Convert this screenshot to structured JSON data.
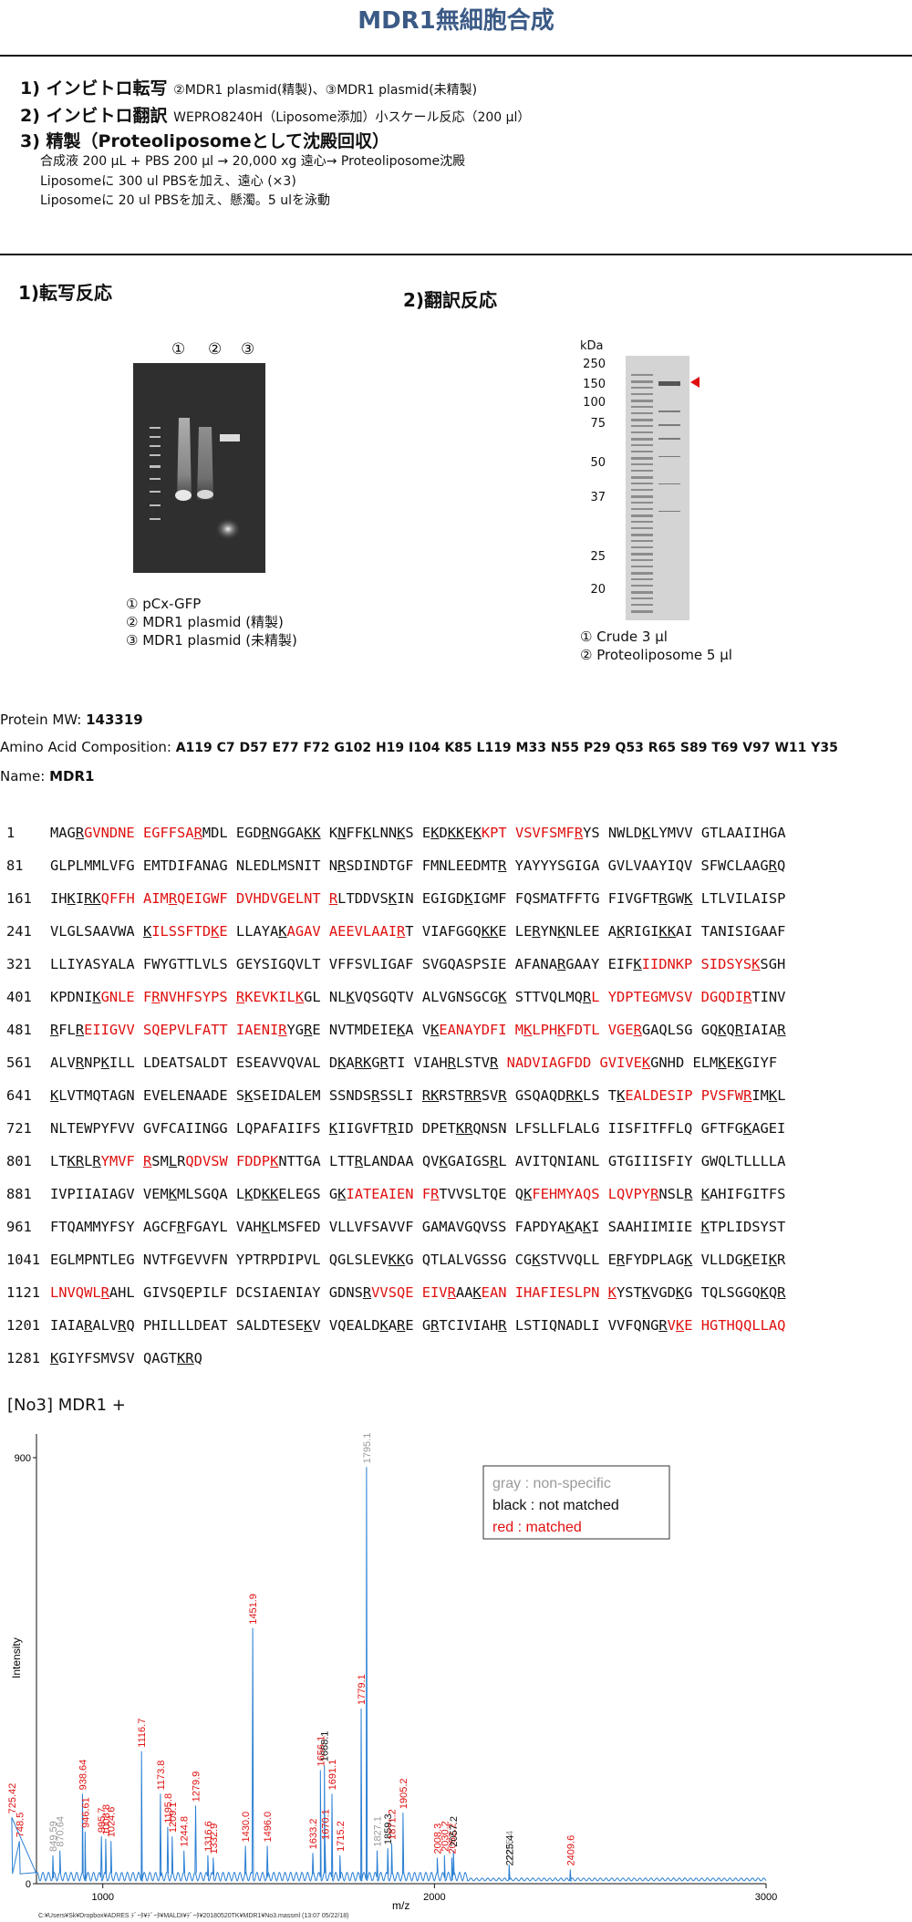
{
  "title": "MDR1無細胞合成",
  "steps": [
    {
      "heading": "1) インビトロ転写",
      "detail": "②MDR1 plasmid(精製)、③MDR1 plasmid(未精製)"
    },
    {
      "heading": "2) インビトロ翻訳",
      "detail": "WEPRO8240H（Liposome添加）小スケール反応（200 µl）"
    },
    {
      "heading": "3) 精製（Proteoliposomeとして沈殿回収）",
      "detail": ""
    }
  ],
  "notes": [
    "合成液 200 µL + PBS 200 µl → 20,000 xg 遠心→ Proteoliposome沈殿",
    "Liposomeに 300 ul PBSを加え、遠心 (×3)",
    "Liposomeに 20 ul PBSを加え、懸濁。5 ulを泳動"
  ],
  "section1": {
    "title": "1)転写反応",
    "lanes": [
      "①",
      "②",
      "③"
    ],
    "legend": [
      "① pCx-GFP",
      "② MDR1 plasmid (精製)",
      "③ MDR1 plasmid (未精製)"
    ]
  },
  "section2": {
    "title": "2)翻訳反応",
    "unit": "kDa",
    "markers": [
      "250",
      "150",
      "100",
      "75",
      "50",
      "37",
      "25",
      "20"
    ],
    "legend": [
      "① Crude 3 µl",
      "② Proteoliposome 5 µl"
    ]
  },
  "protein": {
    "mw_label": "Protein MW:",
    "mw": "143319",
    "comp_label": "Amino Acid Composition:",
    "comp": "A119 C7 D57 E77 F72 G102 H19 I104 K85 L119 M33 N55 P29 Q53 R65 S89 T69 V97 W11 Y35",
    "name_label": "Name:",
    "name": "MDR1"
  },
  "sequence": [
    {
      "n": "1",
      "s": "MAG_R_[GVNDNE EGFFSA_R_]MDL EGD_R_NGGA_K__K_ K_N_FF_K_LNN_K_S E_K_D_K__K_E_K_[KPT VSVFSMF_R_]YS NWLD_K_LYMVV GTLAAIIHGA"
    },
    {
      "n": "81",
      "s": "GLPLMMLVFG EMTDIFANAG NLEDLMSNIT N_R_SDINDTGF FMNLEEDMT_R_ YAYYYSGIGA GVLVAAYIQV SFWCLAAG_R_Q"
    },
    {
      "n": "161",
      "s": "IH_K_I_R__K_[QFFH AIM_R_QEIGWF DVHDVGELNT _R_]LTDDVS_K_IN EGIGD_K_IGMF FQSMATFFTG FIVGFT_R_GW_K_ LTLVILAISP"
    },
    {
      "n": "241",
      "s": "VLGLSAAVWA _K_[ILSSFTD_K_E] LLAYA_K_[AGAV AEEVLAAI_R_]T VIAFGGQ_K__K_E LE_R_YN_K_NLEE A_K_RIGI_K__K_AI TANISIGAAF"
    },
    {
      "n": "321",
      "s": "LLIYASYALA FWYGTTLVLS GEYSIGQVLT VFFSVLIGAF SVGQASPSIE AFANA_R_GAAY EIF_K_[IIDNKP SIDSYS_K_]SGH"
    },
    {
      "n": "401",
      "s": "KPDNI_K_[GNLE F_R_NVHFSYPS _R_KEVKIL_K_]GL NL_K_VQSGQTV ALVGNSGCG_K_ STTVQLMQ_R_[L YDPTEGMVSV DGQDI_R_]TINV"
    },
    {
      "n": "481",
      "s": "_R_FL_R_[EIIGVV SQEPVLFATT IAENI_R_]YG_R_E NVTMDEIE_K_A V_K_[EANAYDFI M_K_LPH_K_FDTL VGE_R_]GAQLSG GQ_K_Q_R_IAIA_R_"
    },
    {
      "n": "561",
      "s": "ALV_R_NP_K_ILL LDEATSALDT ESEAVVQVAL D_K_A_R__K_G_R_TI VIAH_R_LSTV_R_ [NADVIAGFDD GVIVE_K_]GNHD ELM_K_E_K_GIYF"
    },
    {
      "n": "641",
      "s": "_K_LVTMQTAGN EVELENAADE S_K_SEIDALEM SSNDS_R_SSLI _R__K_RST_R__R_SV_R_ GSQAQD_R__K_LS T_K_[EALDESIP PVSFW_R_]IM_K_L"
    },
    {
      "n": "721",
      "s": "NLTEWPYFVV GVFCAIINGG LQPAFAIIFS _K_IIGVFT_R_ID DPET_K__R_QNSN LFSLLFLALG IISFITFFLQ GFTFG_K_AGEI"
    },
    {
      "n": "801",
      "s": "LT_K__R_L_R_[YMVF _R_]SM_L_R[QDVSW FDDP_K_]NTTGA LTT_R_LANDAA QV_K_GAIGS_R_L AVITQNIANL GTGIIISFIY GWQLTLLLLA"
    },
    {
      "n": "881",
      "s": "IVPIIAIAGV VEM_K_MLSGQA L_K_D_K__K_ELEGS G_K_[IATEAIEN F_R_]TVVSLTQE Q_K_[FEHMYAQS LQVPY_R_]NSL_R_ _K_AHIFGITFS"
    },
    {
      "n": "961",
      "s": "FTQAMMYFSY AGCF_R_FGAYL VAH_K_LMSFED VLLVFSAVVF GAMAVGQVSS FAPDYA_K_A_K_I SAAHIIMIIE _K_TPLIDSYST"
    },
    {
      "n": "1041",
      "s": "EGLMPNTLEG NVTFGEVVFN YPTRPDIPVL QGLSLEV_K__K_G QTLALVGSSG CG_K_STVVQLL E_R_FYDPLAG_K_ VLLDG_K_EI_K_R"
    },
    {
      "n": "1121",
      "s": "[LNVQWL_R_]AHL GIVSQEPILF DCSIAENIAY GDNS_R_[VVSQE EIV_R_]AA_K_[EAN IHAFIESLPN _K_]YST_K_VGD_K_G TQLSGGQ_K_Q_R_"
    },
    {
      "n": "1201",
      "s": "IAIA_R_ALV_R_Q PHILLLDEAT SALDTESE_K_V VQEALD_K_A_R_E G_R_TCIVIAH_R_ LSTIQNADLI VVFQNG_R_[V_K_E HGTHQQLLAQ"
    },
    {
      "n": "1281",
      "s": "_K_GIYFSMVSV QAGT_K_]_R_Q"
    }
  ],
  "spectrum": {
    "label": "[No3] MDR1 +",
    "legend": {
      "gray": "gray : non-specific",
      "black": "black : not matched",
      "red": "red : matched"
    },
    "colors": {
      "gray": "#9a9a9a",
      "black": "#111111",
      "red": "#e01010",
      "trace": "#2a7fd4"
    },
    "footer": "C:¥Users¥Sk¥Dropbox¥ADRES ﾃﾞｰﾀ¥ﾃﾞｰﾀ¥MALDI¥ﾃﾞｰﾀ¥20180520TK¥MDR1¥No3.massml (13:07 05/22/18)"
  },
  "chart_data": {
    "type": "line",
    "title": "",
    "xlabel": "m/z",
    "ylabel": "Intensity",
    "xlim": [
      800,
      3000
    ],
    "ylim": [
      0,
      950
    ],
    "xticks": [
      1000,
      2000,
      3000
    ],
    "yticks": [
      0,
      900
    ],
    "peaks": [
      {
        "mz": 725.42,
        "label": "725.42",
        "y": 140,
        "color": "red"
      },
      {
        "mz": 748.5,
        "label": "748.5",
        "y": 90,
        "color": "red"
      },
      {
        "mz": 849.59,
        "label": "849.59",
        "y": 60,
        "color": "gray"
      },
      {
        "mz": 870.64,
        "label": "870.64",
        "y": 70,
        "color": "gray"
      },
      {
        "mz": 938.64,
        "label": "938.64",
        "y": 190,
        "color": "red"
      },
      {
        "mz": 946.61,
        "label": "946.61",
        "y": 110,
        "color": "red"
      },
      {
        "mz": 995.7,
        "label": "995.7",
        "y": 100,
        "color": "red"
      },
      {
        "mz": 1008.8,
        "label": "1008.8",
        "y": 95,
        "color": "red"
      },
      {
        "mz": 1024.6,
        "label": "1024.6",
        "y": 90,
        "color": "red"
      },
      {
        "mz": 1116.7,
        "label": "1116.7",
        "y": 280,
        "color": "red"
      },
      {
        "mz": 1173.8,
        "label": "1173.8",
        "y": 190,
        "color": "red"
      },
      {
        "mz": 1195.8,
        "label": "1195.8",
        "y": 120,
        "color": "red"
      },
      {
        "mz": 1209.1,
        "label": "1209.1",
        "y": 100,
        "color": "red"
      },
      {
        "mz": 1244.8,
        "label": "1244.8",
        "y": 70,
        "color": "red"
      },
      {
        "mz": 1279.9,
        "label": "1279.9",
        "y": 165,
        "color": "red"
      },
      {
        "mz": 1316.6,
        "label": "1316.6",
        "y": 60,
        "color": "red"
      },
      {
        "mz": 1332.9,
        "label": "1332.9",
        "y": 55,
        "color": "red"
      },
      {
        "mz": 1430.0,
        "label": "1430.0",
        "y": 80,
        "color": "red"
      },
      {
        "mz": 1451.9,
        "label": "1451.9",
        "y": 540,
        "color": "red"
      },
      {
        "mz": 1496.0,
        "label": "1496.0",
        "y": 80,
        "color": "red"
      },
      {
        "mz": 1633.2,
        "label": "1633.2",
        "y": 65,
        "color": "red"
      },
      {
        "mz": 1670.1,
        "label": "1670.1",
        "y": 85,
        "color": "red"
      },
      {
        "mz": 1691.1,
        "label": "1691.1",
        "y": 190,
        "color": "red"
      },
      {
        "mz": 1715.2,
        "label": "1715.2",
        "y": 60,
        "color": "red"
      },
      {
        "mz": 1656.1,
        "label": "1656.1",
        "y": 240,
        "color": "red"
      },
      {
        "mz": 1668.1,
        "label": "1668.1",
        "y": 250,
        "color": "black"
      },
      {
        "mz": 1779.1,
        "label": "1779.1",
        "y": 370,
        "color": "red"
      },
      {
        "mz": 1795.1,
        "label": "1795.1",
        "y": 880,
        "color": "gray"
      },
      {
        "mz": 1827.1,
        "label": "1827.1",
        "y": 70,
        "color": "gray"
      },
      {
        "mz": 1859.3,
        "label": "1859.3",
        "y": 75,
        "color": "black"
      },
      {
        "mz": 1871.2,
        "label": "1871.2",
        "y": 85,
        "color": "red"
      },
      {
        "mz": 1905.2,
        "label": "1905.2",
        "y": 150,
        "color": "red"
      },
      {
        "mz": 2008.3,
        "label": "2008.3",
        "y": 55,
        "color": "red"
      },
      {
        "mz": 2030.2,
        "label": "2030.2",
        "y": 60,
        "color": "red"
      },
      {
        "mz": 2052.2,
        "label": "2052.2",
        "y": 55,
        "color": "red"
      },
      {
        "mz": 2057.2,
        "label": "2057.2",
        "y": 70,
        "color": "black"
      },
      {
        "mz": 2225.4,
        "label": "2225.4",
        "y": 40,
        "color": "gray"
      },
      {
        "mz": 2225.4,
        "label": "2225.4",
        "y": 30,
        "color": "black"
      },
      {
        "mz": 2409.6,
        "label": "2409.6",
        "y": 30,
        "color": "red"
      }
    ]
  }
}
